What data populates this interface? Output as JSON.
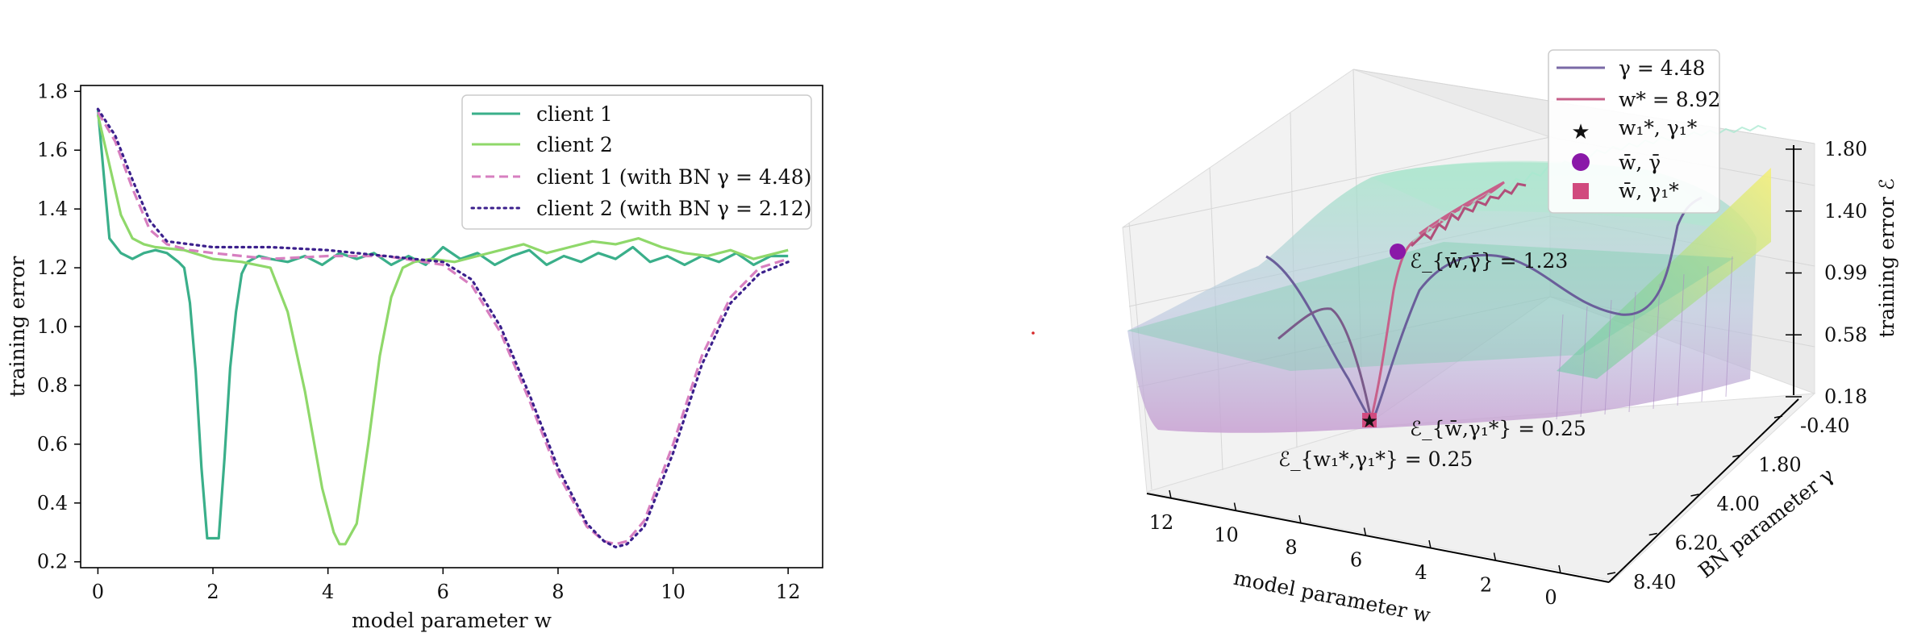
{
  "chart_data": [
    {
      "type": "line",
      "xlabel": "model parameter w",
      "ylabel": "training error",
      "xlim": [
        -0.3,
        12.6
      ],
      "ylim": [
        0.18,
        1.82
      ],
      "xticks": [
        "0",
        "2",
        "4",
        "6",
        "8",
        "10",
        "12"
      ],
      "yticks": [
        "0.2",
        "0.4",
        "0.6",
        "0.8",
        "1.0",
        "1.2",
        "1.4",
        "1.6",
        "1.8"
      ],
      "legend_position": "top-right",
      "grid": false,
      "series": [
        {
          "name": "client 1",
          "style": "solid",
          "color": "#3aaf8a",
          "x": [
            0,
            0.2,
            0.4,
            0.6,
            0.8,
            1.0,
            1.2,
            1.4,
            1.5,
            1.6,
            1.7,
            1.8,
            1.9,
            2.0,
            2.1,
            2.2,
            2.3,
            2.4,
            2.5,
            2.6,
            2.7,
            2.8,
            3.0,
            3.3,
            3.6,
            3.9,
            4.2,
            4.5,
            4.8,
            5.1,
            5.4,
            5.7,
            6.0,
            6.3,
            6.6,
            6.9,
            7.2,
            7.5,
            7.8,
            8.1,
            8.4,
            8.7,
            9.0,
            9.3,
            9.6,
            9.9,
            10.2,
            10.5,
            10.8,
            11.1,
            11.4,
            11.7,
            12.0
          ],
          "y": [
            1.74,
            1.3,
            1.25,
            1.23,
            1.25,
            1.26,
            1.25,
            1.22,
            1.2,
            1.08,
            0.85,
            0.52,
            0.28,
            0.28,
            0.28,
            0.55,
            0.86,
            1.05,
            1.18,
            1.22,
            1.23,
            1.24,
            1.23,
            1.22,
            1.24,
            1.21,
            1.25,
            1.23,
            1.25,
            1.21,
            1.24,
            1.21,
            1.27,
            1.23,
            1.25,
            1.21,
            1.24,
            1.26,
            1.21,
            1.24,
            1.22,
            1.25,
            1.23,
            1.27,
            1.22,
            1.24,
            1.21,
            1.24,
            1.22,
            1.25,
            1.21,
            1.24,
            1.24
          ]
        },
        {
          "name": "client 2",
          "style": "solid",
          "color": "#8fd86a",
          "x": [
            0,
            0.2,
            0.4,
            0.6,
            0.8,
            1.0,
            1.5,
            2.0,
            2.5,
            3.0,
            3.3,
            3.6,
            3.9,
            4.1,
            4.2,
            4.3,
            4.5,
            4.7,
            4.9,
            5.1,
            5.3,
            5.5,
            5.8,
            6.2,
            6.6,
            7.0,
            7.4,
            7.8,
            8.2,
            8.6,
            9.0,
            9.4,
            9.8,
            10.2,
            10.6,
            11.0,
            11.4,
            11.8,
            12.0
          ],
          "y": [
            1.72,
            1.55,
            1.38,
            1.3,
            1.28,
            1.27,
            1.26,
            1.23,
            1.22,
            1.2,
            1.05,
            0.78,
            0.45,
            0.3,
            0.26,
            0.26,
            0.33,
            0.6,
            0.9,
            1.1,
            1.2,
            1.22,
            1.23,
            1.22,
            1.24,
            1.26,
            1.28,
            1.25,
            1.27,
            1.29,
            1.28,
            1.3,
            1.27,
            1.25,
            1.24,
            1.26,
            1.23,
            1.25,
            1.26
          ]
        },
        {
          "name": "client 1 (with BN γ = 4.48)",
          "style": "dashed",
          "color": "#d77fc0",
          "x": [
            0,
            0.3,
            0.6,
            0.9,
            1.2,
            1.6,
            2.0,
            2.5,
            3.0,
            4.0,
            5.0,
            6.0,
            6.5,
            7.0,
            7.5,
            8.0,
            8.5,
            8.8,
            9.0,
            9.2,
            9.5,
            10.0,
            10.5,
            11.0,
            11.5,
            12.0
          ],
          "y": [
            1.73,
            1.63,
            1.47,
            1.33,
            1.28,
            1.26,
            1.25,
            1.24,
            1.23,
            1.24,
            1.24,
            1.21,
            1.14,
            0.98,
            0.75,
            0.5,
            0.32,
            0.27,
            0.26,
            0.27,
            0.34,
            0.6,
            0.9,
            1.1,
            1.2,
            1.23
          ]
        },
        {
          "name": "client 2 (with BN γ = 2.12)",
          "style": "dotted",
          "color": "#3b1f8c",
          "x": [
            0,
            0.3,
            0.6,
            0.9,
            1.2,
            1.6,
            2.0,
            2.5,
            3.0,
            4.0,
            5.0,
            6.0,
            6.5,
            7.0,
            7.5,
            8.0,
            8.5,
            8.8,
            9.0,
            9.2,
            9.5,
            10.0,
            10.5,
            11.0,
            11.5,
            12.0
          ],
          "y": [
            1.74,
            1.65,
            1.5,
            1.36,
            1.29,
            1.28,
            1.27,
            1.27,
            1.27,
            1.26,
            1.24,
            1.22,
            1.16,
            1.0,
            0.77,
            0.52,
            0.33,
            0.27,
            0.25,
            0.26,
            0.32,
            0.57,
            0.87,
            1.08,
            1.18,
            1.22
          ]
        }
      ]
    },
    {
      "type": "surface3d",
      "xlabel": "model parameter w",
      "ylabel": "BN parameter γ",
      "zlabel": "training error ℰ",
      "xticks": [
        "12",
        "10",
        "8",
        "6",
        "4",
        "2",
        "0"
      ],
      "yticks": [
        "-0.40",
        "1.80",
        "4.00",
        "6.20",
        "8.40"
      ],
      "zticks": [
        "1.80",
        "1.40",
        "0.99",
        "0.58",
        "0.18"
      ],
      "legend_position": "top",
      "legend": [
        {
          "label": "γ = 4.48",
          "marker": "line",
          "color": "#7a6aa6"
        },
        {
          "label": "w* = 8.92",
          "marker": "line",
          "color": "#c7608a"
        },
        {
          "label": "w₁*, γ₁*",
          "marker": "star",
          "color": "#000000"
        },
        {
          "label": "w̄, γ̄",
          "marker": "circle",
          "color": "#8a18a8"
        },
        {
          "label": "w̄, γ₁*",
          "marker": "square",
          "color": "#d14a7e"
        }
      ],
      "annotations": [
        {
          "text": "ℰ_{w̄,γ̄} = 1.23",
          "value": 1.23
        },
        {
          "text": "ℰ_{w̄,γ₁*} = 0.25",
          "value": 0.25
        },
        {
          "text": "ℰ_{w₁*,γ₁*} = 0.25",
          "value": 0.25
        }
      ]
    }
  ]
}
